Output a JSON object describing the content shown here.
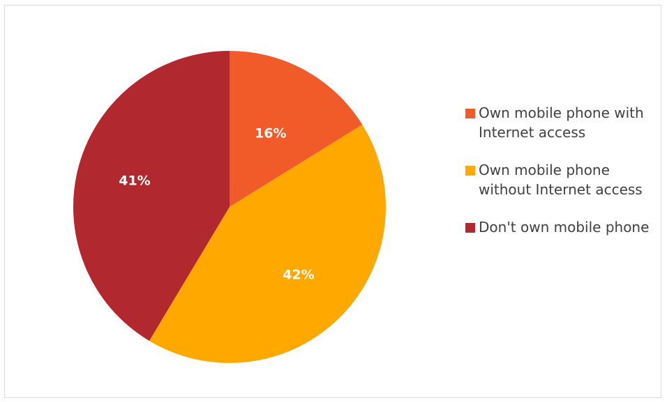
{
  "chart_data": {
    "type": "pie",
    "start_angle_deg": 0,
    "direction": "clockwise",
    "categories": [
      "Own mobile phone with Internet access",
      "Own mobile phone without Internet access",
      "Don't own mobile phone"
    ],
    "values": [
      16,
      42,
      41
    ],
    "labels": [
      "16%",
      "42%",
      "41%"
    ],
    "colors": [
      "#f15a29",
      "#ffa800",
      "#b2282f"
    ],
    "legend": "right"
  }
}
